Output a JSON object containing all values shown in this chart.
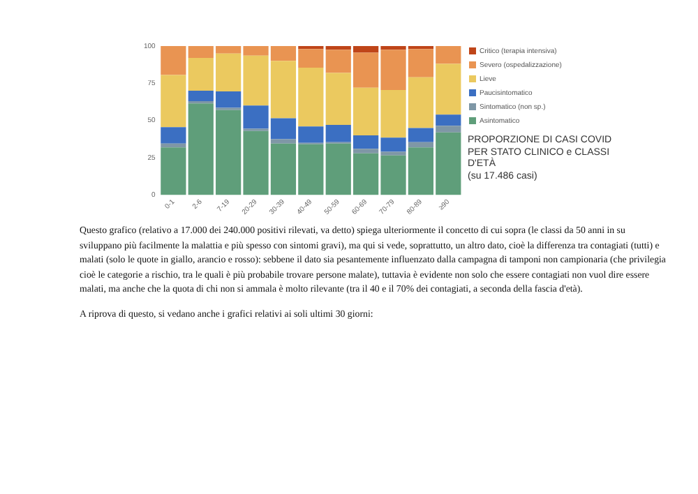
{
  "chart_data": {
    "type": "bar",
    "stacked": true,
    "title": "PROPORZIONE DI CASI COVID PER STATO CLINICO e CLASSI D'ETÀ",
    "subtitle": "(su 17.486 casi)",
    "categories": [
      "0-1",
      "2-6",
      "7-19",
      "20-29",
      "30-39",
      "40-49",
      "50-59",
      "60-69",
      "70-79",
      "80-89",
      "≥90"
    ],
    "series": [
      {
        "name": "Asintomatico",
        "color": "#5f9e7a",
        "values": [
          32,
          61.5,
          57,
          43,
          34.5,
          34,
          34.5,
          28,
          26.5,
          32,
          42
        ]
      },
      {
        "name": "Sintomatico (non sp.)",
        "color": "#7f97a6",
        "values": [
          2.5,
          1.5,
          1.5,
          1.5,
          3,
          1,
          1,
          3,
          2.5,
          3.5,
          4.5
        ]
      },
      {
        "name": "Paucisintomatico",
        "color": "#3b6fc2",
        "values": [
          11,
          7,
          11,
          15.5,
          14,
          11,
          11.5,
          9,
          9.5,
          9.5,
          7.5
        ]
      },
      {
        "name": "Lieve",
        "color": "#ebc95f",
        "values": [
          35,
          22,
          25.5,
          33.5,
          38.5,
          39.5,
          35,
          32,
          32,
          34,
          34
        ]
      },
      {
        "name": "Severo (ospedalizzazione)",
        "color": "#e99452",
        "values": [
          19.5,
          8,
          5,
          6.5,
          10,
          12.5,
          15.5,
          23.5,
          27,
          19,
          12
        ]
      },
      {
        "name": "Critico (terapia intensiva)",
        "color": "#bf4519",
        "values": [
          0,
          0,
          0,
          0,
          0,
          2,
          2.5,
          4.5,
          2.5,
          2,
          0
        ]
      }
    ],
    "ylim": [
      0,
      100
    ],
    "yticks": [
      0,
      25,
      50,
      75,
      100
    ],
    "grid": false,
    "legend": "right",
    "annotations": [
      "Questo grafico (relativo a 17.000 dei 240.000 positivi rilevati, va detto) spiega ulteriormente il concetto di cui sopra (le classi da 50 anni in su sviluppano più facilmente la malattia e più spesso con sintomi gravi), ma qui si vede, soprattutto, un altro dato, cioè la differenza tra contagiati (tutti) e malati (solo le quote in giallo, arancio e rosso): sebbene il dato sia pesantemente influenzato dalla campagna di tamponi non campionaria (che privilegia cioè le categorie a rischio, tra le quali è più probabile trovare persone malate), tuttavia è evidente non solo che essere contagiati non vuol dire essere malati, ma anche che la quota di chi non si ammala è molto rilevante (tra il 40 e il 70% dei contagiati, a seconda della fascia d'età).",
      "A riprova di questo, si vedano anche i grafici relativi ai soli ultimi 30 giorni:"
    ]
  }
}
